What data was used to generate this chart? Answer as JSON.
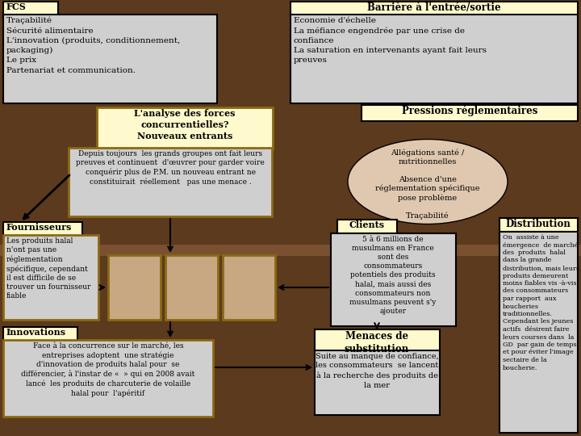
{
  "bg_color": "#5C3A1E",
  "light_yellow": "#FFFACD",
  "light_gray": "#D0CFCF",
  "beige": "#C8A882",
  "ellipse_color": "#E0C8B0",
  "black": "#000000",
  "gold_border": "#8B6914",
  "dark_stripe": "#7A5030",
  "fcs_title": "FCS",
  "fcs_content": "Traçabilité\nSécurité alimentaire\nL'innovation (produits, conditionnement,\npackaging)\nLe prix\nPartenariat et communication.",
  "barriere_title": "Barrière à l'entrée/sortie",
  "barriere_content": "Economie d'échelle\nLa méfiance engendrée par une crise de\nconfiance\nLa saturation en intervenants ayant fait leurs\npreuves",
  "pressions_title": "Pressions réglementaires",
  "analyse_title": "L'analyse des forces\nconcurrentielles?\nNouveaux entrants",
  "analyse_content": "Depuis toujours  les grands groupes ont fait leurs\npreuves et continuent  d'œuvrer pour garder voire\nconquérir plus de P.M. un nouveau entrant ne\nconstituirait  réellement   pas une menace .",
  "ellipse_line1": "Allégations santé /",
  "ellipse_line2": "nutritionnelles",
  "ellipse_line3": "",
  "ellipse_line4": "Absence d'une",
  "ellipse_line5": "réglementation spécifique",
  "ellipse_line6": "pose problème",
  "ellipse_line7": "",
  "ellipse_line8": "Traçabilité",
  "fournisseurs_title": "Fournisseurs",
  "fournisseurs_content": "Les produits halal\nn'ont pas une\nréglementation\nspécifique, cependant\nil est difficile de se\ntrouver un fournisseur\nfiable",
  "innovations_title": "Innovations",
  "innovations_content": "Face à la concurrence sur le marché, les\nentreprises adoptent  une stratégie\nd'innovation de produits halal pour  se\ndifférencier, à l'instar de «  » qui en 2008 avait\nlancé  les produits de charcuterie de volaille\nhalal pour  l'apéritif",
  "clients_title": "Clients",
  "clients_content": "5 à 6 millions de\nmusulmans en France\nsont des\nconsommateurs\npotentiels des produits\nhalal, mais aussi des\nconsommateurs non\nmusulmans peuvent s'y\najouter",
  "distribution_title": "Distribution",
  "distribution_content": "On  assiste à une\némergence  de marché\ndes  produits  halal\ndans la grande\ndistribution, mais leurs\nproduits demeurent\nmoins fiables vis -à-vis\ndes consommateurs\npar rapport  aux\nboucheries\ntraditionnelles.\nCependant les jeunes\nactifs  désirent faire\nleurs courses dans  la\nGD  par gain de temps\net pour éviter l'image\nsectaire de la\nboucherie.",
  "menaces_title": "Menaces de\nsubstitution",
  "menaces_content": "Suite au manque de confiance,\nles consommateurs  se lancent\nà la recherche des produits de\nla mer"
}
